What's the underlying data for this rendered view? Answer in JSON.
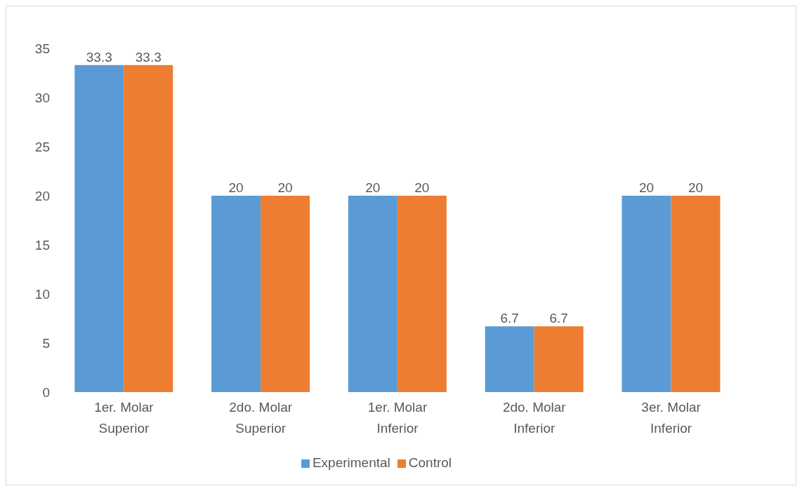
{
  "chart_data": {
    "type": "bar",
    "categories": [
      "1er. Molar Superior",
      "2do. Molar Superior",
      "1er. Molar Inferior",
      "2do. Molar Inferior",
      "3er. Molar Inferior"
    ],
    "series": [
      {
        "name": "Experimental",
        "color": "#5b9bd5",
        "values": [
          33.3,
          20,
          20,
          6.7,
          20
        ]
      },
      {
        "name": "Control",
        "color": "#ed7d31",
        "values": [
          33.3,
          20,
          20,
          6.7,
          20
        ]
      }
    ],
    "ylim": [
      0,
      35
    ],
    "yticks": [
      0,
      5,
      10,
      15,
      20,
      25,
      30,
      35
    ],
    "data_labels": true,
    "legend": "bottom"
  }
}
